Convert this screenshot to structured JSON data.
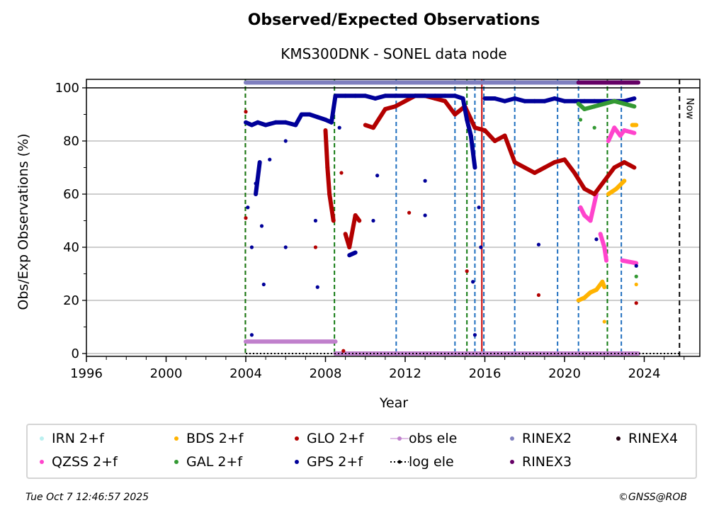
{
  "chart_data": {
    "type": "scatter",
    "title": "Observed/Expected Observations",
    "subtitle": "KMS300DNK - SONEL data node",
    "xlabel": "Year",
    "ylabel": "Obs/Exp Observations (%)",
    "xlim": [
      1996,
      2026.8
    ],
    "ylim": [
      -1,
      103
    ],
    "x_ticks": [
      1996,
      2000,
      2004,
      2008,
      2012,
      2016,
      2020,
      2024
    ],
    "y_ticks": [
      0,
      20,
      40,
      60,
      80,
      100
    ],
    "grid": "horizontal",
    "now_label": "Now",
    "now_year": 2025.77,
    "reference_line_y": 100,
    "vertical_events": [
      {
        "year": 2003.98,
        "color": "#cc0000",
        "style": "dashed"
      },
      {
        "year": 2003.98,
        "color": "#117a11",
        "style": "dashed"
      },
      {
        "year": 2008.45,
        "color": "#117a11",
        "style": "dashed"
      },
      {
        "year": 2011.55,
        "color": "#1f6fbf",
        "style": "dashed"
      },
      {
        "year": 2014.5,
        "color": "#1f6fbf",
        "style": "dashed"
      },
      {
        "year": 2015.1,
        "color": "#117a11",
        "style": "dashed"
      },
      {
        "year": 2015.5,
        "color": "#1f6fbf",
        "style": "dashed"
      },
      {
        "year": 2015.85,
        "color": "#cc0000",
        "style": "solid"
      },
      {
        "year": 2015.95,
        "color": "#1f6fbf",
        "style": "dashed"
      },
      {
        "year": 2017.5,
        "color": "#1f6fbf",
        "style": "dashed"
      },
      {
        "year": 2019.65,
        "color": "#1f6fbf",
        "style": "dashed"
      },
      {
        "year": 2020.7,
        "color": "#1f6fbf",
        "style": "dashed"
      },
      {
        "year": 2022.15,
        "color": "#117a11",
        "style": "dashed"
      },
      {
        "year": 2022.85,
        "color": "#1f6fbf",
        "style": "dashed"
      }
    ],
    "rinex_bars": [
      {
        "name": "RINEX2",
        "start": 2004.0,
        "end": 2020.7,
        "y": 102,
        "color": "#8080c0"
      },
      {
        "name": "RINEX3",
        "start": 2020.7,
        "end": 2023.7,
        "y": 102,
        "color": "#660066"
      }
    ],
    "series": [
      {
        "name": "GPS 2+f",
        "color": "#000099",
        "points": [
          [
            2004.0,
            87
          ],
          [
            2004.3,
            86
          ],
          [
            2004.6,
            87
          ],
          [
            2005.0,
            86
          ],
          [
            2005.5,
            87
          ],
          [
            2006.0,
            87
          ],
          [
            2006.5,
            86
          ],
          [
            2006.8,
            90
          ],
          [
            2007.2,
            90
          ],
          [
            2007.6,
            89
          ],
          [
            2008.0,
            88
          ],
          [
            2008.3,
            87
          ],
          [
            2008.5,
            97
          ],
          [
            2009.0,
            97
          ],
          [
            2009.5,
            97
          ],
          [
            2010.0,
            97
          ],
          [
            2010.5,
            96
          ],
          [
            2011.0,
            97
          ],
          [
            2011.5,
            97
          ],
          [
            2012.0,
            97
          ],
          [
            2012.5,
            97
          ],
          [
            2013.0,
            97
          ],
          [
            2013.5,
            97
          ],
          [
            2014.0,
            97
          ],
          [
            2014.5,
            97
          ],
          [
            2014.9,
            96
          ],
          [
            2015.1,
            88
          ],
          [
            2015.3,
            82
          ],
          [
            2015.5,
            70
          ],
          [
            2015.7,
            55
          ],
          [
            2015.8,
            40
          ],
          [
            2016.0,
            96
          ],
          [
            2016.5,
            96
          ],
          [
            2017.0,
            95
          ],
          [
            2017.5,
            96
          ],
          [
            2018.0,
            95
          ],
          [
            2018.5,
            95
          ],
          [
            2019.0,
            95
          ],
          [
            2019.5,
            96
          ],
          [
            2020.0,
            95
          ],
          [
            2020.5,
            95
          ],
          [
            2021.0,
            95
          ],
          [
            2021.5,
            95
          ],
          [
            2022.0,
            95
          ],
          [
            2022.5,
            95
          ],
          [
            2023.0,
            95
          ],
          [
            2023.5,
            96
          ],
          [
            2004.1,
            55
          ],
          [
            2004.3,
            40
          ],
          [
            2004.5,
            64
          ],
          [
            2004.5,
            60
          ],
          [
            2004.7,
            72
          ],
          [
            2004.8,
            48
          ],
          [
            2004.9,
            26
          ],
          [
            2005.2,
            73
          ],
          [
            2006.0,
            80
          ],
          [
            2006.0,
            40
          ],
          [
            2007.5,
            50
          ],
          [
            2007.6,
            25
          ],
          [
            2008.7,
            85
          ],
          [
            2009.2,
            37
          ],
          [
            2009.5,
            38
          ],
          [
            2010.4,
            50
          ],
          [
            2010.6,
            67
          ],
          [
            2013.0,
            65
          ],
          [
            2013.0,
            52
          ],
          [
            2015.4,
            27
          ],
          [
            2015.5,
            7
          ],
          [
            2018.7,
            41
          ],
          [
            2021.6,
            43
          ],
          [
            2023.6,
            33
          ],
          [
            2004.3,
            7
          ]
        ]
      },
      {
        "name": "GLO 2+f",
        "color": "#b30000",
        "points": [
          [
            2004.0,
            91
          ],
          [
            2004.0,
            51
          ],
          [
            2008.0,
            84
          ],
          [
            2008.1,
            70
          ],
          [
            2008.2,
            60
          ],
          [
            2008.3,
            55
          ],
          [
            2008.4,
            50
          ],
          [
            2008.8,
            68
          ],
          [
            2009.0,
            45
          ],
          [
            2009.2,
            40
          ],
          [
            2009.5,
            52
          ],
          [
            2009.7,
            50
          ],
          [
            2010.0,
            86
          ],
          [
            2010.4,
            85
          ],
          [
            2011.0,
            92
          ],
          [
            2011.5,
            93
          ],
          [
            2012.0,
            95
          ],
          [
            2012.5,
            97
          ],
          [
            2013.0,
            97
          ],
          [
            2013.5,
            96
          ],
          [
            2014.0,
            95
          ],
          [
            2014.5,
            90
          ],
          [
            2015.0,
            93
          ],
          [
            2015.5,
            85
          ],
          [
            2016.0,
            84
          ],
          [
            2016.5,
            80
          ],
          [
            2017.0,
            82
          ],
          [
            2017.5,
            72
          ],
          [
            2018.0,
            70
          ],
          [
            2018.5,
            68
          ],
          [
            2019.0,
            70
          ],
          [
            2019.5,
            72
          ],
          [
            2020.0,
            73
          ],
          [
            2020.5,
            68
          ],
          [
            2021.0,
            62
          ],
          [
            2021.5,
            60
          ],
          [
            2022.0,
            65
          ],
          [
            2022.5,
            70
          ],
          [
            2023.0,
            72
          ],
          [
            2023.5,
            70
          ],
          [
            2007.5,
            40
          ],
          [
            2008.9,
            1
          ],
          [
            2012.2,
            53
          ],
          [
            2015.1,
            31
          ],
          [
            2018.7,
            22
          ],
          [
            2023.6,
            19
          ]
        ]
      },
      {
        "name": "GAL 2+f",
        "color": "#339933",
        "points": [
          [
            2020.7,
            94
          ],
          [
            2021.0,
            92
          ],
          [
            2021.5,
            93
          ],
          [
            2022.0,
            94
          ],
          [
            2022.5,
            95
          ],
          [
            2023.0,
            94
          ],
          [
            2023.5,
            93
          ],
          [
            2020.8,
            88
          ],
          [
            2021.5,
            85
          ],
          [
            2023.6,
            29
          ]
        ]
      },
      {
        "name": "QZSS 2+f",
        "color": "#ff44cc",
        "points": [
          [
            2020.8,
            55
          ],
          [
            2021.0,
            52
          ],
          [
            2021.3,
            50
          ],
          [
            2021.6,
            60
          ],
          [
            2021.8,
            45
          ],
          [
            2022.0,
            40
          ],
          [
            2022.1,
            35
          ],
          [
            2022.2,
            80
          ],
          [
            2022.5,
            85
          ],
          [
            2022.8,
            82
          ],
          [
            2023.0,
            84
          ],
          [
            2023.5,
            83
          ],
          [
            2022.9,
            35
          ],
          [
            2023.6,
            34
          ]
        ]
      },
      {
        "name": "BDS 2+f",
        "color": "#ffb300",
        "points": [
          [
            2020.7,
            20
          ],
          [
            2021.0,
            21
          ],
          [
            2021.3,
            23
          ],
          [
            2021.6,
            24
          ],
          [
            2021.9,
            27
          ],
          [
            2022.0,
            25
          ],
          [
            2022.2,
            60
          ],
          [
            2022.6,
            62
          ],
          [
            2023.0,
            65
          ],
          [
            2023.4,
            86
          ],
          [
            2023.6,
            86
          ],
          [
            2023.6,
            26
          ],
          [
            2022.0,
            12
          ]
        ]
      },
      {
        "name": "IRN 2+f",
        "color": "#bbf0f0",
        "points": []
      },
      {
        "name": "obs ele",
        "color": "#c080cc",
        "segments": [
          {
            "start": 2004.0,
            "end": 2008.5,
            "y": 4.5
          },
          {
            "start": 2008.5,
            "end": 2023.7,
            "y": 0
          }
        ]
      },
      {
        "name": "log ele",
        "color": "#000000",
        "segments": [
          {
            "start": 2004.0,
            "end": 2025.77,
            "y": 0
          }
        ]
      }
    ],
    "legend": {
      "placement": "bottom",
      "entries": [
        {
          "label": "IRN 2+f",
          "color": "#bbf0f0",
          "marker": "dot"
        },
        {
          "label": "QZSS 2+f",
          "color": "#ff44cc",
          "marker": "dot"
        },
        {
          "label": "BDS 2+f",
          "color": "#ffb300",
          "marker": "dot"
        },
        {
          "label": "GAL 2+f",
          "color": "#339933",
          "marker": "dot"
        },
        {
          "label": "GLO 2+f",
          "color": "#b30000",
          "marker": "dot"
        },
        {
          "label": "GPS 2+f",
          "color": "#000099",
          "marker": "dot"
        },
        {
          "label": "obs ele",
          "color": "#c080cc",
          "marker": "line-dot"
        },
        {
          "label": "log ele",
          "color": "#000000",
          "marker": "dotted-dot"
        },
        {
          "label": "RINEX2",
          "color": "#8080c0",
          "marker": "dot"
        },
        {
          "label": "RINEX3",
          "color": "#660066",
          "marker": "dot"
        },
        {
          "label": "RINEX4",
          "color": "#220011",
          "marker": "dot"
        }
      ]
    }
  },
  "footer": {
    "date": "Tue Oct  7 12:46:57 2025",
    "copyright": "©GNSS@ROB"
  }
}
